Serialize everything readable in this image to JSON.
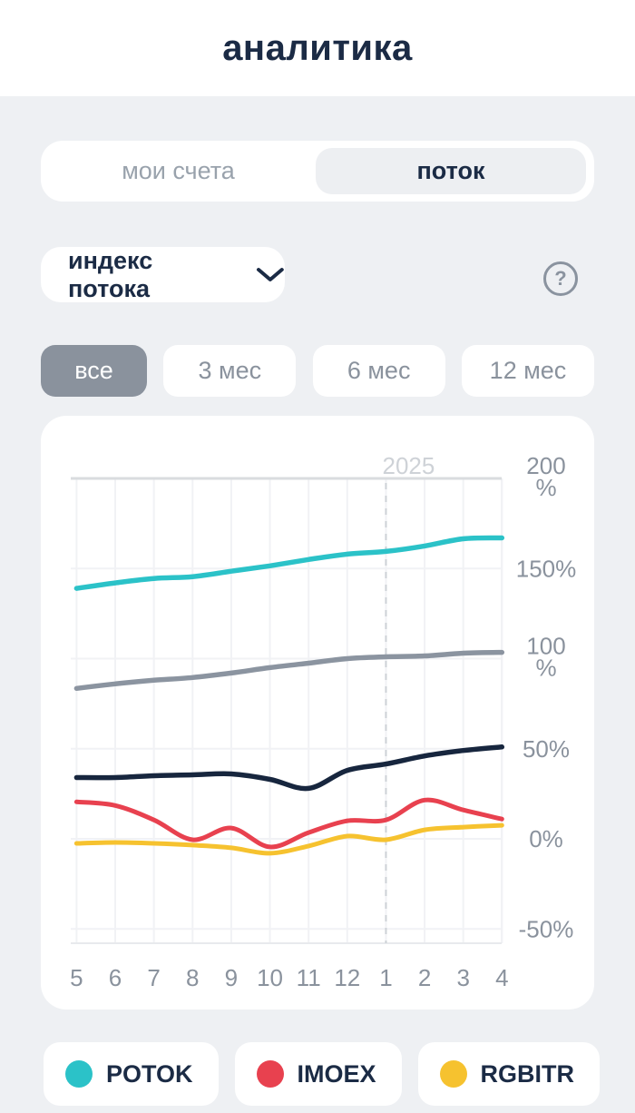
{
  "theme": {
    "page_bg": "#eef0f3",
    "card_bg": "#ffffff",
    "navy_text": "#1b2b45",
    "gray_text": "#8a929d",
    "inactive_tab_text": "#99a2ac",
    "selected_segment_bg": "#edeff2",
    "grid_line": "#f1f2f5",
    "axis_top_line": "#d9dcdf",
    "dashed_line": "#cdd1d6",
    "annotation_text": "#ced2d7"
  },
  "header": {
    "title": "аналитика"
  },
  "tabs": {
    "items": [
      {
        "label": "мои счета",
        "active": false
      },
      {
        "label": "поток",
        "active": true
      }
    ]
  },
  "controls": {
    "index_dropdown": {
      "label": "индекс потока",
      "icon": "chevron-down-icon"
    },
    "help": {
      "icon": "question-mark-icon",
      "glyph": "?"
    }
  },
  "range_buttons": [
    {
      "label": "все",
      "active": true
    },
    {
      "label": "3 мес",
      "active": false
    },
    {
      "label": "6 мес",
      "active": false
    },
    {
      "label": "12 мес",
      "active": false
    }
  ],
  "chart_data": {
    "type": "line",
    "x_labels": [
      "5",
      "6",
      "7",
      "8",
      "9",
      "10",
      "11",
      "12",
      "1",
      "2",
      "3",
      "4"
    ],
    "y_ticks": [
      {
        "label": "200 %",
        "value": 200
      },
      {
        "label": "150%",
        "value": 150
      },
      {
        "label": "100 %",
        "value": 100
      },
      {
        "label": "50%",
        "value": 50
      },
      {
        "label": "0%",
        "value": 0
      },
      {
        "label": "-50%",
        "value": -50
      }
    ],
    "ylim": [
      -58,
      200
    ],
    "grid": true,
    "annotation": {
      "label": "2025",
      "at_x_index": 8
    },
    "series": [
      {
        "name": "POTOK",
        "color": "#2bc2c8",
        "width": 5.5,
        "values": [
          139,
          142,
          144.5,
          145.5,
          148.5,
          151.5,
          155,
          158,
          159.5,
          162.5,
          166.5,
          167
        ]
      },
      {
        "name": "gray-series",
        "color": "#8b94a0",
        "width": 5.5,
        "values": [
          83.5,
          86,
          88,
          89.5,
          92,
          95,
          97.5,
          100,
          101,
          101.5,
          103,
          103.5
        ]
      },
      {
        "name": "navy-series",
        "color": "#17263e",
        "width": 5.5,
        "values": [
          34,
          34,
          35,
          35.5,
          36,
          33,
          28,
          38,
          41.5,
          46,
          49,
          51
        ]
      },
      {
        "name": "RGBITR",
        "color": "#f6c22f",
        "width": 5,
        "values": [
          -2.5,
          -2,
          -2.5,
          -3.5,
          -5,
          -8,
          -4,
          1.5,
          -0.5,
          5,
          6.5,
          7.5
        ]
      },
      {
        "name": "IMOEX",
        "color": "#e8414f",
        "width": 5,
        "values": [
          20.5,
          18.5,
          10.5,
          -0.5,
          6,
          -4.5,
          3.5,
          10,
          10.5,
          21.5,
          16,
          11
        ]
      }
    ]
  },
  "legend": [
    {
      "label": "POTOK",
      "color": "#2bc2c8"
    },
    {
      "label": "IMOEX",
      "color": "#e8414f"
    },
    {
      "label": "RGBITR",
      "color": "#f6c22f"
    }
  ]
}
